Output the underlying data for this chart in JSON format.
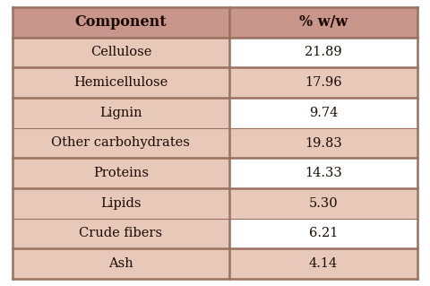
{
  "headers": [
    "Component",
    "% w/w"
  ],
  "rows": [
    [
      "Cellulose",
      "21.89"
    ],
    [
      "Hemicellulose",
      "17.96"
    ],
    [
      "Lignin",
      "9.74"
    ],
    [
      "Other carbohydrates",
      "19.83"
    ],
    [
      "Proteins",
      "14.33"
    ],
    [
      "Lipids",
      "5.30"
    ],
    [
      "Crude fibers",
      "6.21"
    ],
    [
      "Ash",
      "4.14"
    ]
  ],
  "header_bg": "#c8968a",
  "left_col_bg": "#e8c8b8",
  "right_col_colors": [
    "#ffffff",
    "#e8c8b8",
    "#ffffff",
    "#e8c8b8",
    "#ffffff",
    "#e8c8b8",
    "#ffffff",
    "#e8c8b8"
  ],
  "thick_border_after": [
    0,
    1,
    3,
    4,
    6,
    7
  ],
  "thin_border_after": [
    2,
    5
  ],
  "border_color": "#9a7060",
  "text_color": "#1a0a00",
  "header_text_color": "#1a0a00",
  "font_size": 10.5,
  "header_font_size": 11.5,
  "fig_bg": "#ffffff"
}
